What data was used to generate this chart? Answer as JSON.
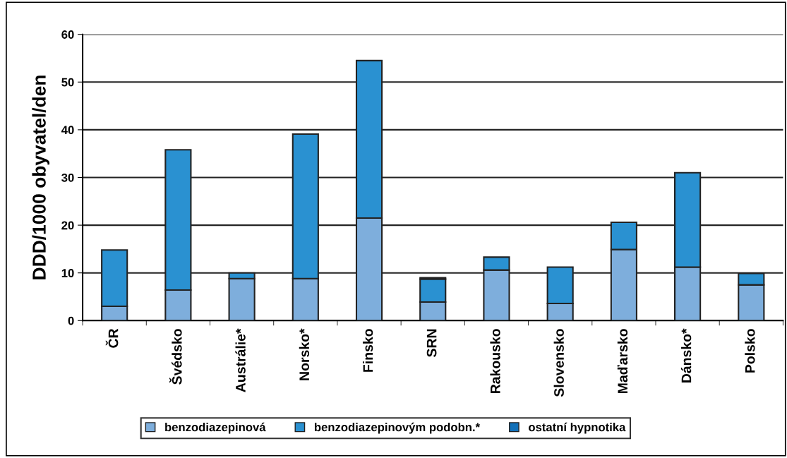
{
  "chart_data": {
    "type": "bar",
    "stacked": true,
    "ylabel": "DDD/1000 obyvatel/den",
    "categories": [
      "ČR",
      "Švédsko",
      "Austrálie*",
      "Norsko*",
      "Finsko",
      "SRN",
      "Rakousko",
      "Slovensko",
      "Maďarsko",
      "Dánsko*",
      "Polsko"
    ],
    "series": [
      {
        "name": "benzodiazepinová",
        "color": "#7eaedc",
        "values": [
          3.0,
          6.4,
          8.8,
          8.8,
          21.5,
          3.9,
          10.6,
          3.6,
          14.9,
          11.2,
          7.5
        ]
      },
      {
        "name": "benzodiazepinovým podobn.*",
        "color": "#2a91d1",
        "values": [
          11.8,
          29.4,
          1.2,
          30.3,
          33.0,
          4.8,
          2.7,
          7.6,
          5.7,
          19.8,
          2.4
        ]
      },
      {
        "name": "ostatní hypnotika",
        "color": "#1170b8",
        "values": [
          null,
          null,
          null,
          null,
          null,
          0.3,
          null,
          null,
          null,
          null,
          null
        ]
      }
    ],
    "ylim": [
      0,
      60
    ],
    "yticks": [
      0,
      10,
      20,
      30,
      40,
      50,
      60
    ],
    "grid": "y",
    "legend": "bottom"
  }
}
